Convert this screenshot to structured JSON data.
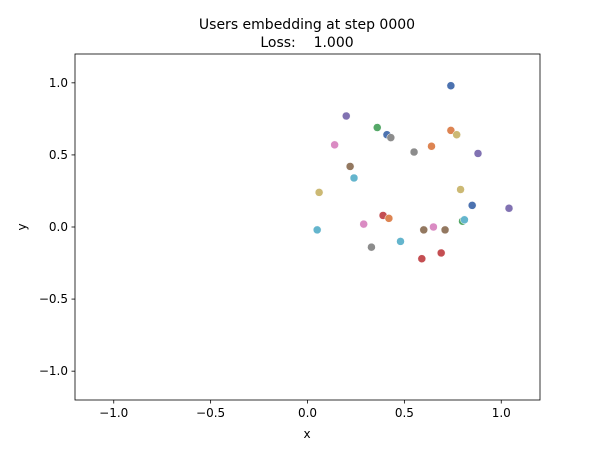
{
  "chart_data": {
    "type": "scatter",
    "title": "Users embedding at step 0000",
    "subtitle": "Loss:    1.000",
    "xlabel": "x",
    "ylabel": "y",
    "xlim": [
      -1.2,
      1.2
    ],
    "ylim": [
      -1.2,
      1.2
    ],
    "xticks": [
      -1.0,
      -0.5,
      0.0,
      0.5,
      1.0
    ],
    "xtick_labels": [
      "−1.0",
      "−0.5",
      "0.0",
      "0.5",
      "1.0"
    ],
    "yticks": [
      -1.0,
      -0.5,
      0.0,
      0.5,
      1.0
    ],
    "ytick_labels": [
      "−1.0",
      "−0.5",
      "0.0",
      "0.5",
      "1.0"
    ],
    "grid": false,
    "points": [
      {
        "x": 0.74,
        "y": 0.98,
        "color": "#4c72b0"
      },
      {
        "x": 0.2,
        "y": 0.77,
        "color": "#8172b2"
      },
      {
        "x": 0.36,
        "y": 0.69,
        "color": "#55a868"
      },
      {
        "x": 0.41,
        "y": 0.64,
        "color": "#4c72b0"
      },
      {
        "x": 0.43,
        "y": 0.62,
        "color": "#8c8c8c"
      },
      {
        "x": 0.74,
        "y": 0.67,
        "color": "#dd8452"
      },
      {
        "x": 0.77,
        "y": 0.64,
        "color": "#ccb974"
      },
      {
        "x": 0.14,
        "y": 0.57,
        "color": "#da8bc3"
      },
      {
        "x": 0.55,
        "y": 0.52,
        "color": "#8c8c8c"
      },
      {
        "x": 0.64,
        "y": 0.56,
        "color": "#dd8452"
      },
      {
        "x": 0.88,
        "y": 0.51,
        "color": "#8172b2"
      },
      {
        "x": 0.22,
        "y": 0.42,
        "color": "#937860"
      },
      {
        "x": 0.24,
        "y": 0.34,
        "color": "#64b5cd"
      },
      {
        "x": 0.06,
        "y": 0.24,
        "color": "#ccb974"
      },
      {
        "x": 0.79,
        "y": 0.26,
        "color": "#ccb974"
      },
      {
        "x": 0.85,
        "y": 0.15,
        "color": "#4c72b0"
      },
      {
        "x": 1.04,
        "y": 0.13,
        "color": "#8172b2"
      },
      {
        "x": 0.39,
        "y": 0.08,
        "color": "#c44e52"
      },
      {
        "x": 0.42,
        "y": 0.06,
        "color": "#dd8452"
      },
      {
        "x": 0.8,
        "y": 0.04,
        "color": "#55a868"
      },
      {
        "x": 0.81,
        "y": 0.05,
        "color": "#64b5cd"
      },
      {
        "x": 0.29,
        "y": 0.02,
        "color": "#da8bc3"
      },
      {
        "x": 0.6,
        "y": -0.02,
        "color": "#937860"
      },
      {
        "x": 0.65,
        "y": 0.0,
        "color": "#da8bc3"
      },
      {
        "x": 0.71,
        "y": -0.02,
        "color": "#937860"
      },
      {
        "x": 0.05,
        "y": -0.02,
        "color": "#64b5cd"
      },
      {
        "x": 0.48,
        "y": -0.1,
        "color": "#64b5cd"
      },
      {
        "x": 0.33,
        "y": -0.14,
        "color": "#8c8c8c"
      },
      {
        "x": 0.69,
        "y": -0.18,
        "color": "#c44e52"
      },
      {
        "x": 0.59,
        "y": -0.22,
        "color": "#c44e52"
      }
    ]
  }
}
